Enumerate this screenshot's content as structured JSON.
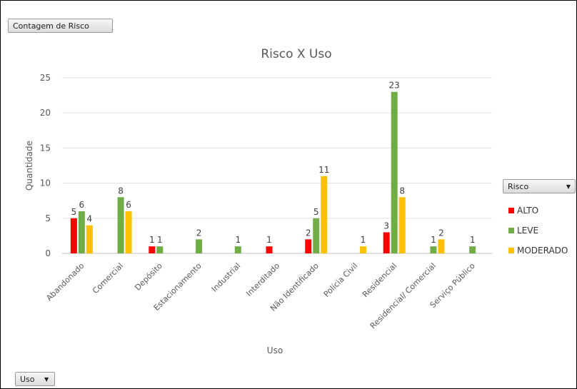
{
  "field_buttons": {
    "value_field": "Contagem de Risco",
    "axis_field": "Uso",
    "legend_field": "Risco"
  },
  "chart_data": {
    "type": "bar",
    "title": "Risco X Uso",
    "xlabel": "Uso",
    "ylabel": "Quantidade",
    "ylim": [
      0,
      25
    ],
    "yticks": [
      0,
      5,
      10,
      15,
      20,
      25
    ],
    "grid": true,
    "legend_position": "right",
    "categories": [
      "Abandonado",
      "Comercial",
      "Depósito",
      "Estacionamento",
      "Industrial",
      "Interditado",
      "Não Identificado",
      "Polícia Civil",
      "Residencial",
      "Residencial/ Comercial",
      "Serviço Público"
    ],
    "series": [
      {
        "name": "ALTO",
        "color": "#ff0000",
        "values": [
          5,
          null,
          1,
          null,
          null,
          1,
          2,
          null,
          3,
          null,
          null
        ]
      },
      {
        "name": "LEVE",
        "color": "#70ad47",
        "values": [
          6,
          8,
          1,
          2,
          1,
          null,
          5,
          null,
          23,
          1,
          1
        ]
      },
      {
        "name": "MODERADO",
        "color": "#ffc000",
        "values": [
          4,
          6,
          null,
          null,
          null,
          null,
          11,
          1,
          8,
          2,
          null
        ]
      }
    ]
  }
}
